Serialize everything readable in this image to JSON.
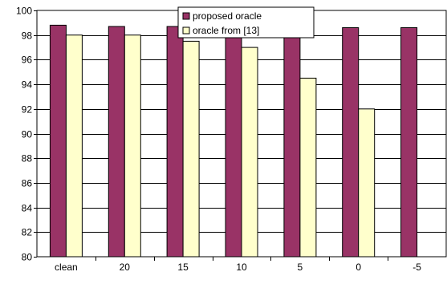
{
  "chart_data": {
    "type": "bar",
    "title": "",
    "xlabel": "",
    "ylabel": "",
    "categories": [
      "clean",
      "20",
      "15",
      "10",
      "5",
      "0",
      "-5"
    ],
    "ylim": [
      80,
      100
    ],
    "yticks": [
      80,
      82,
      84,
      86,
      88,
      90,
      92,
      94,
      96,
      98,
      100
    ],
    "grid": true,
    "legend_position": "top-right",
    "series": [
      {
        "name": "proposed oracle",
        "color": "#993366",
        "values": [
          98.8,
          98.7,
          98.7,
          98.6,
          98.7,
          98.6,
          98.6
        ]
      },
      {
        "name": "oracle from [13]",
        "color": "#ffffcc",
        "values": [
          98.0,
          98.0,
          97.5,
          97.0,
          94.5,
          92.0,
          null
        ]
      }
    ]
  }
}
